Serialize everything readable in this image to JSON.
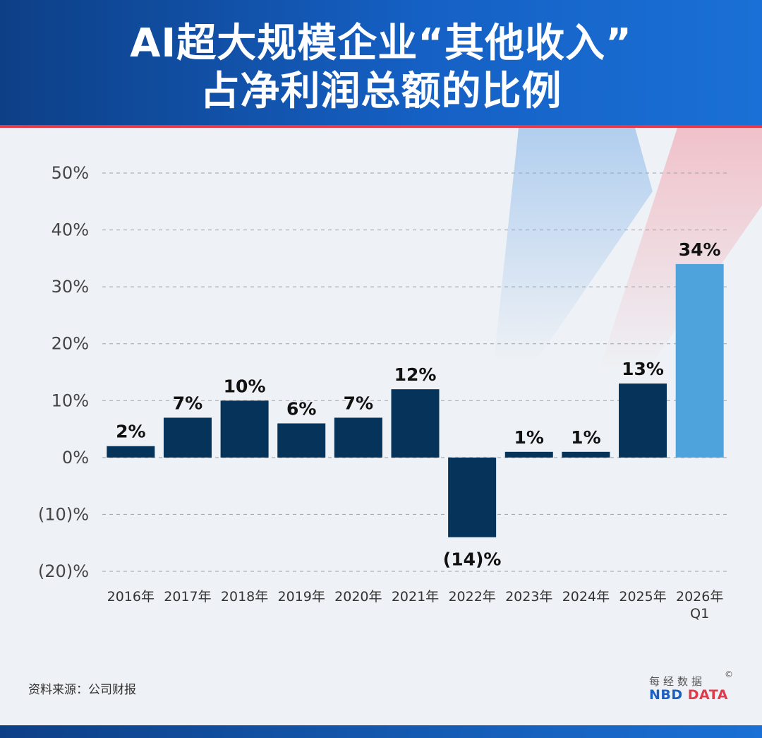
{
  "header": {
    "title_line1": "AI超大规模企业“其他收入”",
    "title_line2": "占净利润总额的比例"
  },
  "chart_data": {
    "type": "bar",
    "title": "AI超大规模企业“其他收入”占净利润总额的比例",
    "categories": [
      "2016年",
      "2017年",
      "2018年",
      "2019年",
      "2020年",
      "2021年",
      "2022年",
      "2023年",
      "2024年",
      "2025年",
      "2026年 Q1"
    ],
    "category_lines": [
      [
        "2016年"
      ],
      [
        "2017年"
      ],
      [
        "2018年"
      ],
      [
        "2019年"
      ],
      [
        "2020年"
      ],
      [
        "2021年"
      ],
      [
        "2022年"
      ],
      [
        "2023年"
      ],
      [
        "2024年"
      ],
      [
        "2025年"
      ],
      [
        "2026年",
        "Q1"
      ]
    ],
    "values": [
      2,
      7,
      10,
      6,
      7,
      12,
      -14,
      1,
      1,
      13,
      34
    ],
    "data_labels": [
      "2%",
      "7%",
      "10%",
      "6%",
      "7%",
      "12%",
      "(14)%",
      "1%",
      "1%",
      "13%",
      "34%"
    ],
    "ylim": [
      -20,
      50
    ],
    "yticks": [
      50,
      40,
      30,
      20,
      10,
      0,
      -10,
      -20
    ],
    "ytick_labels": [
      "50%",
      "40%",
      "30%",
      "20%",
      "10%",
      "0%",
      "(10)%",
      "(20)%"
    ],
    "grid": true,
    "colors": {
      "default": "#06335a",
      "highlight": "#4fa3dd"
    },
    "highlight_index": 10
  },
  "footer": {
    "source": "资料来源：公司财报",
    "brand_cn": "每经数据",
    "copyright": "©",
    "brand_logo_part1": "NBD",
    "brand_logo_part2": "DATA"
  }
}
